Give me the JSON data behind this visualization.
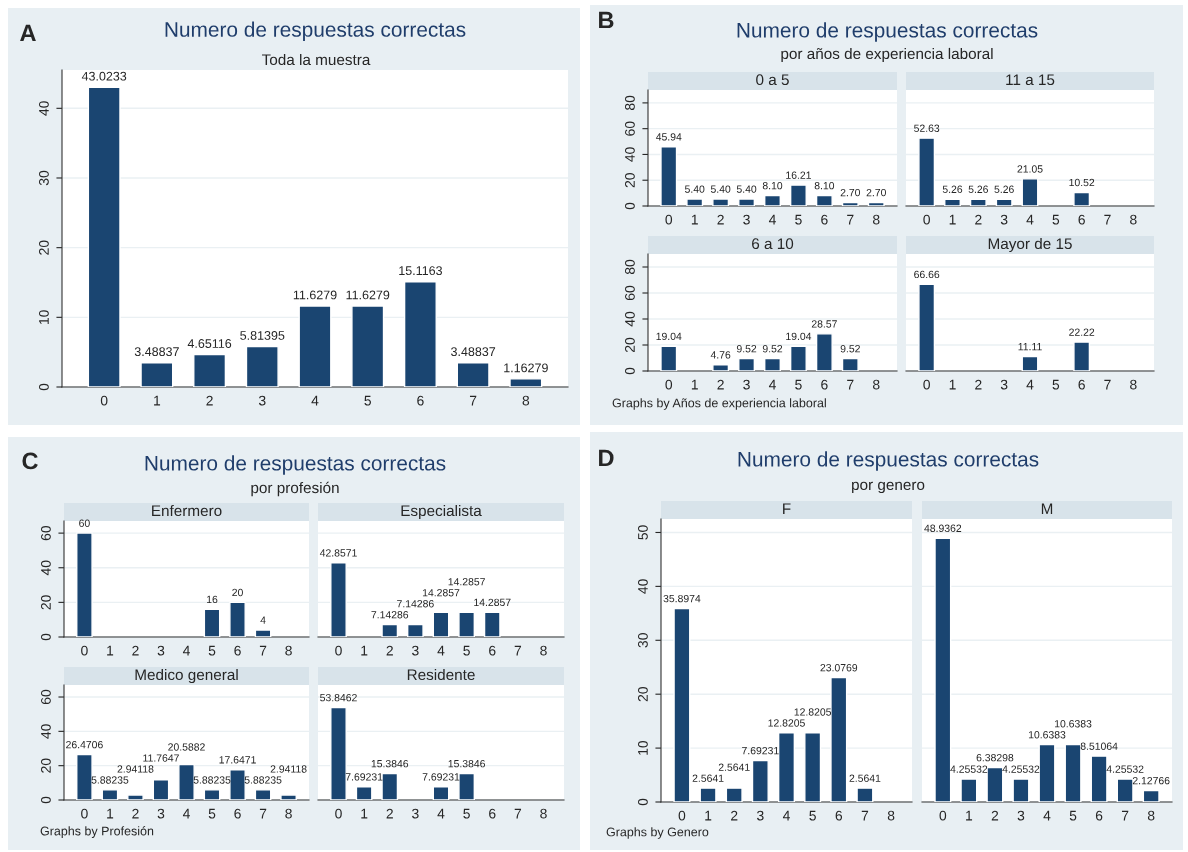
{
  "chart_data": [
    {
      "type": "bar",
      "title": "Numero de respuestas correctas",
      "subtitle": "Toda la muestra",
      "annotations": [
        "A"
      ],
      "categories": [
        "0",
        "1",
        "2",
        "3",
        "4",
        "5",
        "6",
        "7",
        "8"
      ],
      "color": "#1a4571",
      "ylim": [
        0,
        45.5
      ],
      "yticks": [
        0,
        10,
        20,
        30,
        40
      ],
      "grid": "y",
      "values": [
        43.0233,
        3.48837,
        4.65116,
        5.81395,
        11.6279,
        11.6279,
        15.1163,
        3.48837,
        1.16279
      ],
      "value_labels": [
        "43.0233",
        "3.48837",
        "4.65116",
        "5.81395",
        "11.6279",
        "11.6279",
        "15.1163",
        "3.48837",
        "1.16279"
      ]
    },
    {
      "type": "bar",
      "title": "0 a 5",
      "annotations": [
        "B",
        "Numero de respuestas correctas",
        "por años de experiencia laboral"
      ],
      "categories": [
        "0",
        "1",
        "2",
        "3",
        "4",
        "5",
        "6",
        "7",
        "8"
      ],
      "color": "#1a4571",
      "ylim": [
        0,
        90
      ],
      "yticks": [
        0,
        20,
        40,
        60,
        80
      ],
      "grid": "y",
      "values": [
        45.94,
        5.4,
        5.4,
        5.4,
        8.1,
        16.21,
        8.1,
        2.7,
        2.7
      ],
      "value_labels": [
        "45.94",
        "5.40",
        "5.40",
        "5.40",
        "8.10",
        "16.21",
        "8.10",
        "2.70",
        "2.70"
      ]
    },
    {
      "type": "bar",
      "title": "11 a 15",
      "tick_labels": "x",
      "categories": [
        "0",
        "1",
        "2",
        "3",
        "4",
        "5",
        "6",
        "7",
        "8"
      ],
      "color": "#1a4571",
      "ylim": [
        0,
        90
      ],
      "yticks": [
        0,
        20,
        40,
        60,
        80
      ],
      "grid": "y",
      "values": [
        52.63,
        5.26,
        5.26,
        5.26,
        21.05,
        null,
        10.52,
        null,
        null
      ],
      "value_labels": [
        "52.63",
        "5.26",
        "5.26",
        "5.26",
        "21.05",
        null,
        "10.52",
        null,
        null
      ]
    },
    {
      "type": "bar",
      "title": "6 a 10",
      "categories": [
        "0",
        "1",
        "2",
        "3",
        "4",
        "5",
        "6",
        "7",
        "8"
      ],
      "color": "#1a4571",
      "ylim": [
        0,
        90
      ],
      "yticks": [
        0,
        20,
        40,
        60,
        80
      ],
      "grid": "y",
      "values": [
        19.04,
        null,
        4.76,
        9.52,
        9.52,
        19.04,
        28.57,
        9.52,
        null
      ],
      "value_labels": [
        "19.04",
        null,
        "4.76",
        "9.52",
        "9.52",
        "19.04",
        "28.57",
        "9.52",
        null
      ]
    },
    {
      "type": "bar",
      "title": "Mayor de 15",
      "tick_labels": "x",
      "annotations": [
        "Graphs by Años de experiencia laboral"
      ],
      "categories": [
        "0",
        "1",
        "2",
        "3",
        "4",
        "5",
        "6",
        "7",
        "8"
      ],
      "color": "#1a4571",
      "ylim": [
        0,
        90
      ],
      "yticks": [
        0,
        20,
        40,
        60,
        80
      ],
      "grid": "y",
      "values": [
        66.66,
        null,
        null,
        null,
        11.11,
        null,
        22.22,
        null,
        null
      ],
      "value_labels": [
        "66.66",
        null,
        null,
        null,
        "11.11",
        null,
        "22.22",
        null,
        null
      ]
    },
    {
      "type": "bar",
      "title": "Enfermero",
      "annotations": [
        "C",
        "Numero de respuestas correctas",
        "por profesión"
      ],
      "categories": [
        "0",
        "1",
        "2",
        "3",
        "4",
        "5",
        "6",
        "7",
        "8"
      ],
      "color": "#1a4571",
      "ylim": [
        0,
        67
      ],
      "yticks": [
        0,
        20,
        40,
        60
      ],
      "grid": "y",
      "values": [
        60,
        null,
        null,
        null,
        null,
        16,
        20,
        4,
        null
      ],
      "value_labels": [
        "60",
        null,
        null,
        null,
        null,
        "16",
        "20",
        "4",
        null
      ]
    },
    {
      "type": "bar",
      "title": "Especialista",
      "tick_labels": "x",
      "categories": [
        "0",
        "1",
        "2",
        "3",
        "4",
        "5",
        "6",
        "7",
        "8"
      ],
      "color": "#1a4571",
      "ylim": [
        0,
        67
      ],
      "yticks": [
        0,
        20,
        40,
        60
      ],
      "grid": "y",
      "values": [
        42.8571,
        null,
        7.14286,
        7.14286,
        14.2857,
        14.2857,
        14.2857,
        null,
        null
      ],
      "value_labels": [
        "42.8571",
        null,
        "7.14286",
        "7.14286",
        "14.2857",
        "14.2857",
        "14.2857",
        null,
        null
      ]
    },
    {
      "type": "bar",
      "title": "Medico general",
      "categories": [
        "0",
        "1",
        "2",
        "3",
        "4",
        "5",
        "6",
        "7",
        "8"
      ],
      "color": "#1a4571",
      "ylim": [
        0,
        67
      ],
      "yticks": [
        0,
        20,
        40,
        60
      ],
      "grid": "y",
      "values": [
        26.4706,
        5.88235,
        2.94118,
        11.7647,
        20.5882,
        5.88235,
        17.6471,
        5.88235,
        2.94118
      ],
      "value_labels": [
        "26.4706",
        "5.88235",
        "2.94118",
        "11.7647",
        "20.5882",
        "5.88235",
        "17.6471",
        "5.88235",
        "2.94118"
      ]
    },
    {
      "type": "bar",
      "title": "Residente",
      "tick_labels": "x",
      "annotations": [
        "Graphs by Profesión"
      ],
      "categories": [
        "0",
        "1",
        "2",
        "3",
        "4",
        "5",
        "6",
        "7",
        "8"
      ],
      "color": "#1a4571",
      "ylim": [
        0,
        67
      ],
      "yticks": [
        0,
        20,
        40,
        60
      ],
      "grid": "y",
      "values": [
        53.8462,
        7.69231,
        15.3846,
        null,
        7.69231,
        15.3846,
        null,
        null,
        null
      ],
      "value_labels": [
        "53.8462",
        "7.69231",
        "15.3846",
        null,
        "7.69231",
        "15.3846",
        null,
        null,
        null
      ]
    },
    {
      "type": "bar",
      "title": "F",
      "annotations": [
        "D",
        "Numero de respuestas correctas",
        "por genero"
      ],
      "categories": [
        "0",
        "1",
        "2",
        "3",
        "4",
        "5",
        "6",
        "7",
        "8"
      ],
      "color": "#1a4571",
      "ylim": [
        0,
        52.5
      ],
      "yticks": [
        0,
        10,
        20,
        30,
        40,
        50
      ],
      "grid": "y",
      "values": [
        35.8974,
        2.5641,
        2.5641,
        7.69231,
        12.8205,
        12.8205,
        23.0769,
        2.5641,
        null
      ],
      "value_labels": [
        "35.8974",
        "2.5641",
        "2.5641",
        "7.69231",
        "12.8205",
        "12.8205",
        "23.0769",
        "2.5641",
        null
      ]
    },
    {
      "type": "bar",
      "title": "M",
      "tick_labels": "x",
      "annotations": [
        "Graphs by Genero"
      ],
      "categories": [
        "0",
        "1",
        "2",
        "3",
        "4",
        "5",
        "6",
        "7",
        "8"
      ],
      "color": "#1a4571",
      "ylim": [
        0,
        52.5
      ],
      "yticks": [
        0,
        10,
        20,
        30,
        40,
        50
      ],
      "grid": "y",
      "values": [
        48.9362,
        4.25532,
        6.38298,
        4.25532,
        10.6383,
        10.6383,
        8.51064,
        4.25532,
        2.12766
      ],
      "value_labels": [
        "48.9362",
        "4.25532",
        "6.38298",
        "4.25532",
        "10.6383",
        "10.6383",
        "8.51064",
        "4.25532",
        "2.12766"
      ]
    }
  ]
}
